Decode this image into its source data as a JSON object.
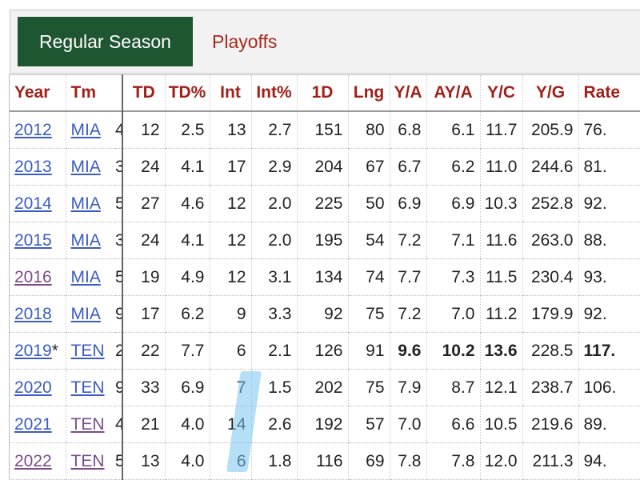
{
  "tabs": {
    "active": "Regular Season",
    "other": "Playoffs"
  },
  "table": {
    "headers": {
      "year": "Year",
      "tm": "Tm",
      "td": "TD",
      "td_pct": "TD%",
      "int": "Int",
      "int_pct": "Int%",
      "first_downs": "1D",
      "lng": "Lng",
      "ya": "Y/A",
      "aya": "AY/A",
      "yc": "Y/C",
      "yg": "Y/G",
      "rate": "Rate"
    },
    "rows": [
      {
        "year": "2012",
        "star": "",
        "tm": "MIA",
        "clip": "4",
        "td": "12",
        "td_pct": "2.5",
        "int": "13",
        "int_pct": "2.7",
        "first_downs": "151",
        "lng": "80",
        "ya": "6.8",
        "aya": "6.1",
        "yc": "11.7",
        "yg": "205.9",
        "rate": "76.",
        "year_visited": false,
        "tm_visited": false
      },
      {
        "year": "2013",
        "star": "",
        "tm": "MIA",
        "clip": "3",
        "td": "24",
        "td_pct": "4.1",
        "int": "17",
        "int_pct": "2.9",
        "first_downs": "204",
        "lng": "67",
        "ya": "6.7",
        "aya": "6.2",
        "yc": "11.0",
        "yg": "244.6",
        "rate": "81.",
        "year_visited": false,
        "tm_visited": false
      },
      {
        "year": "2014",
        "star": "",
        "tm": "MIA",
        "clip": "5",
        "td": "27",
        "td_pct": "4.6",
        "int": "12",
        "int_pct": "2.0",
        "first_downs": "225",
        "lng": "50",
        "ya": "6.9",
        "aya": "6.9",
        "yc": "10.3",
        "yg": "252.8",
        "rate": "92.",
        "year_visited": false,
        "tm_visited": false
      },
      {
        "year": "2015",
        "star": "",
        "tm": "MIA",
        "clip": "3",
        "td": "24",
        "td_pct": "4.1",
        "int": "12",
        "int_pct": "2.0",
        "first_downs": "195",
        "lng": "54",
        "ya": "7.2",
        "aya": "7.1",
        "yc": "11.6",
        "yg": "263.0",
        "rate": "88.",
        "year_visited": false,
        "tm_visited": false
      },
      {
        "year": "2016",
        "star": "",
        "tm": "MIA",
        "clip": "5",
        "td": "19",
        "td_pct": "4.9",
        "int": "12",
        "int_pct": "3.1",
        "first_downs": "134",
        "lng": "74",
        "ya": "7.7",
        "aya": "7.3",
        "yc": "11.5",
        "yg": "230.4",
        "rate": "93.",
        "year_visited": true,
        "tm_visited": false
      },
      {
        "year": "2018",
        "star": "",
        "tm": "MIA",
        "clip": "9",
        "td": "17",
        "td_pct": "6.2",
        "int": "9",
        "int_pct": "3.3",
        "first_downs": "92",
        "lng": "75",
        "ya": "7.2",
        "aya": "7.0",
        "yc": "11.2",
        "yg": "179.9",
        "rate": "92.",
        "year_visited": false,
        "tm_visited": false
      },
      {
        "year": "2019",
        "star": "*",
        "tm": "TEN",
        "clip": "2",
        "td": "22",
        "td_pct": "7.7",
        "int": "6",
        "int_pct": "2.1",
        "first_downs": "126",
        "lng": "91",
        "ya": "9.6",
        "aya": "10.2",
        "yc": "13.6",
        "yg": "228.5",
        "rate": "117.",
        "year_visited": false,
        "tm_visited": false,
        "bold": true
      },
      {
        "year": "2020",
        "star": "",
        "tm": "TEN",
        "clip": "9",
        "td": "33",
        "td_pct": "6.9",
        "int": "7",
        "int_pct": "1.5",
        "first_downs": "202",
        "lng": "75",
        "ya": "7.9",
        "aya": "8.7",
        "yc": "12.1",
        "yg": "238.7",
        "rate": "106.",
        "year_visited": false,
        "tm_visited": false
      },
      {
        "year": "2021",
        "star": "",
        "tm": "TEN",
        "clip": "4",
        "td": "21",
        "td_pct": "4.0",
        "int": "14",
        "int_pct": "2.6",
        "first_downs": "192",
        "lng": "57",
        "ya": "7.0",
        "aya": "6.6",
        "yc": "10.5",
        "yg": "219.6",
        "rate": "89.",
        "year_visited": false,
        "tm_visited": true
      },
      {
        "year": "2022",
        "star": "",
        "tm": "TEN",
        "clip": "5",
        "td": "13",
        "td_pct": "4.0",
        "int": "6",
        "int_pct": "1.8",
        "first_downs": "116",
        "lng": "69",
        "ya": "7.8",
        "aya": "7.8",
        "yc": "12.0",
        "yg": "211.3",
        "rate": "94.",
        "year_visited": true,
        "tm_visited": true
      }
    ]
  },
  "colors": {
    "active_tab_bg": "#1f5632",
    "header_text": "#a0201a",
    "link": "#3a5cc4",
    "visited_link": "#7b4a8f",
    "highlight": "#78c3f0"
  }
}
